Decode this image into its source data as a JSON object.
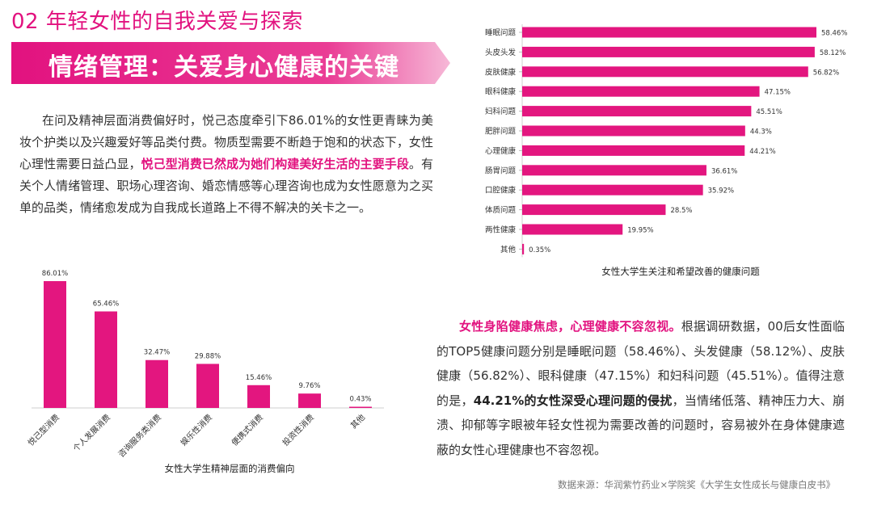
{
  "page_title": "02 年轻女性的自我关爱与探索",
  "banner_title": "情绪管理：关爱身心健康的关键",
  "paragraph1": {
    "part1": "在问及精神层面消费偏好时，悦己态度牵引下86.01%的女性更青睐为美妆个护类以及兴趣爱好等品类付费。物质型需要不断趋于饱和的状态下，女性心理性需要日益凸显，",
    "highlight": "悦己型消费已然成为她们构建美好生活的主要手段",
    "part2": "。有关个人情绪管理、职场心理咨询、婚恋情感等心理咨询也成为女性愿意为之买单的品类，情绪愈发成为自我成长道路上不得不解决的关卡之一。"
  },
  "paragraph2": {
    "highlight": "女性身陷健康焦虑，心理健康不容忽视。",
    "part1": "根据调研数据，00后女性面临的TOP5健康问题分别是睡眠问题（58.46%）、头发健康（58.12%）、皮肤健康（56.82%）、眼科健康（47.15%）和妇科问题（45.51%）。值得注意的是，",
    "bold": "44.21%的女性深受心理问题的侵扰",
    "part2": "，当情绪低落、精神压力大、崩溃、抑郁等字眼被年轻女性视为需要改善的问题时，容易被外在身体健康遮蔽的女性心理健康也不容忽视。"
  },
  "source": "数据来源：华润紫竹药业×学院奖《大学生女性成长与健康白皮书》",
  "colors": {
    "accent": "#e2127f",
    "bar": "#e3167f"
  },
  "chart_data": [
    {
      "type": "bar",
      "title": "女性大学生精神层面的消费偏向",
      "categories": [
        "悦己型消费",
        "个人发展消费",
        "咨询服务类消费",
        "娱乐性消费",
        "便携式消费",
        "投资性消费",
        "其他"
      ],
      "values": [
        86.01,
        65.46,
        32.47,
        29.88,
        15.46,
        9.76,
        0.43
      ],
      "value_labels": [
        "86.01%",
        "65.46%",
        "32.47%",
        "29.88%",
        "15.46%",
        "9.76%",
        "0.43%"
      ],
      "ylim": [
        0,
        90
      ]
    },
    {
      "type": "bar",
      "orientation": "horizontal",
      "title": "女性大学生关注和希望改善的健康问题",
      "categories": [
        "睡眠问题",
        "头皮头发",
        "皮肤健康",
        "眼科健康",
        "妇科问题",
        "肥胖问题",
        "心理健康",
        "肠胃问题",
        "口腔健康",
        "体质问题",
        "两性健康",
        "其他"
      ],
      "values": [
        58.46,
        58.12,
        56.82,
        47.15,
        45.51,
        44.3,
        44.21,
        36.61,
        35.92,
        28.5,
        19.95,
        0.35
      ],
      "value_labels": [
        "58.46%",
        "58.12%",
        "56.82%",
        "47.15%",
        "45.51%",
        "44.3%",
        "44.21%",
        "36.61%",
        "35.92%",
        "28.5%",
        "19.95%",
        "0.35%"
      ],
      "xlim": [
        0,
        60
      ]
    }
  ]
}
